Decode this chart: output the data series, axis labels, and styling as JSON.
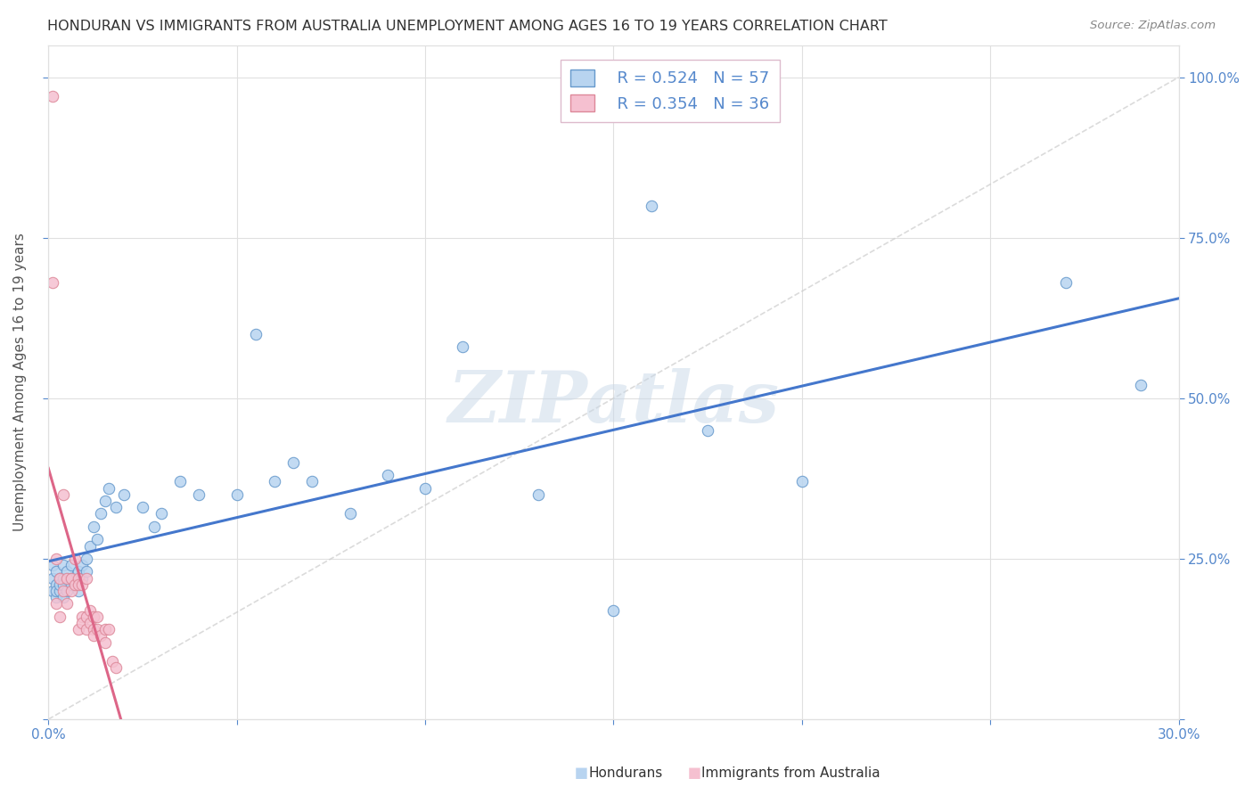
{
  "title": "HONDURAN VS IMMIGRANTS FROM AUSTRALIA UNEMPLOYMENT AMONG AGES 16 TO 19 YEARS CORRELATION CHART",
  "source": "Source: ZipAtlas.com",
  "ylabel": "Unemployment Among Ages 16 to 19 years",
  "xlim": [
    0.0,
    0.3
  ],
  "ylim": [
    0.0,
    1.05
  ],
  "series1_name": "Hondurans",
  "series1_color": "#b8d4f0",
  "series1_edge_color": "#6699cc",
  "series1_line_color": "#4477cc",
  "series1_R": 0.524,
  "series1_N": 57,
  "series2_name": "Immigrants from Australia",
  "series2_color": "#f5c0d0",
  "series2_edge_color": "#dd8899",
  "series2_line_color": "#dd6688",
  "series2_R": 0.354,
  "series2_N": 36,
  "watermark_text": "ZIPatlas",
  "background_color": "#ffffff",
  "grid_color": "#e0e0e0",
  "tick_label_color": "#5588cc",
  "title_color": "#333333",
  "source_color": "#888888",
  "legend_edge_color": "#ddbbcc",
  "hondurans_x": [
    0.001,
    0.001,
    0.001,
    0.002,
    0.002,
    0.002,
    0.002,
    0.003,
    0.003,
    0.003,
    0.004,
    0.004,
    0.004,
    0.004,
    0.005,
    0.005,
    0.005,
    0.006,
    0.006,
    0.006,
    0.007,
    0.007,
    0.008,
    0.008,
    0.009,
    0.009,
    0.01,
    0.01,
    0.011,
    0.012,
    0.013,
    0.014,
    0.015,
    0.016,
    0.018,
    0.02,
    0.025,
    0.028,
    0.03,
    0.035,
    0.04,
    0.05,
    0.055,
    0.06,
    0.065,
    0.07,
    0.08,
    0.09,
    0.1,
    0.11,
    0.13,
    0.15,
    0.16,
    0.175,
    0.2,
    0.27,
    0.29
  ],
  "hondurans_y": [
    0.2,
    0.22,
    0.24,
    0.21,
    0.19,
    0.23,
    0.2,
    0.22,
    0.2,
    0.21,
    0.22,
    0.19,
    0.24,
    0.21,
    0.22,
    0.2,
    0.23,
    0.21,
    0.24,
    0.22,
    0.22,
    0.21,
    0.23,
    0.2,
    0.22,
    0.24,
    0.23,
    0.25,
    0.27,
    0.3,
    0.28,
    0.32,
    0.34,
    0.36,
    0.33,
    0.35,
    0.33,
    0.3,
    0.32,
    0.37,
    0.35,
    0.35,
    0.6,
    0.37,
    0.4,
    0.37,
    0.32,
    0.38,
    0.36,
    0.58,
    0.35,
    0.17,
    0.8,
    0.45,
    0.37,
    0.68,
    0.52
  ],
  "australia_x": [
    0.001,
    0.001,
    0.002,
    0.002,
    0.003,
    0.003,
    0.004,
    0.004,
    0.005,
    0.005,
    0.006,
    0.006,
    0.007,
    0.007,
    0.008,
    0.008,
    0.008,
    0.009,
    0.009,
    0.009,
    0.01,
    0.01,
    0.01,
    0.011,
    0.011,
    0.012,
    0.012,
    0.012,
    0.013,
    0.013,
    0.014,
    0.015,
    0.015,
    0.016,
    0.017,
    0.018
  ],
  "australia_y": [
    0.97,
    0.68,
    0.25,
    0.18,
    0.22,
    0.16,
    0.2,
    0.35,
    0.22,
    0.18,
    0.2,
    0.22,
    0.21,
    0.25,
    0.22,
    0.14,
    0.21,
    0.16,
    0.15,
    0.21,
    0.14,
    0.16,
    0.22,
    0.15,
    0.17,
    0.14,
    0.13,
    0.16,
    0.14,
    0.16,
    0.13,
    0.12,
    0.14,
    0.14,
    0.09,
    0.08
  ],
  "ytick_positions": [
    0.0,
    0.25,
    0.5,
    0.75,
    1.0
  ],
  "ytick_labels_right": [
    "",
    "25.0%",
    "50.0%",
    "75.0%",
    "100.0%"
  ]
}
